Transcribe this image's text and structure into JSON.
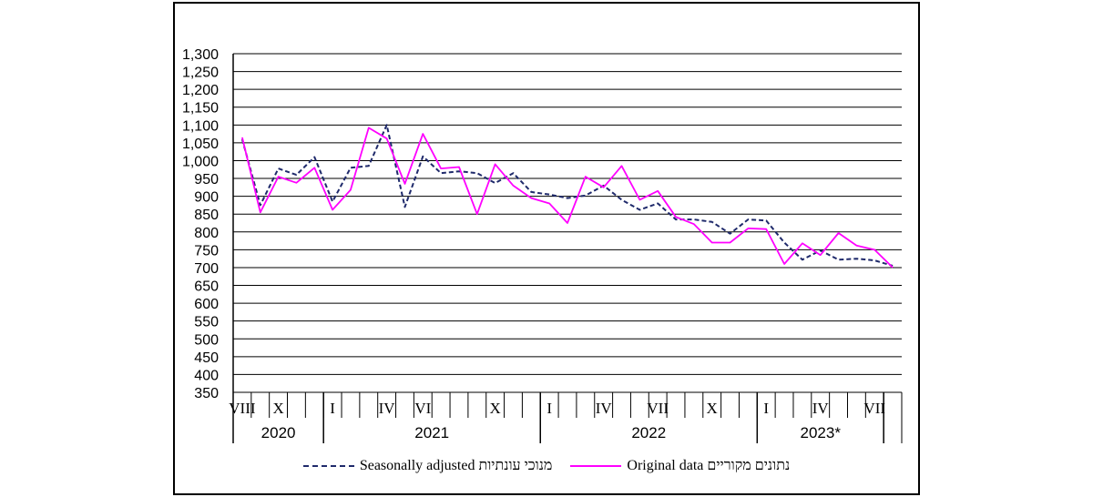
{
  "chart_data": {
    "type": "line",
    "title": "",
    "xlabel": "",
    "ylabel": "",
    "ylim": [
      350,
      1300
    ],
    "ytick_step": 50,
    "grid": true,
    "legend_position": "bottom",
    "x_month_labels": [
      "VIII",
      "X",
      "I",
      "IV",
      "VI",
      "X",
      "I",
      "IV",
      "VII",
      "X",
      "I",
      "IV",
      "VII"
    ],
    "year_labels": [
      "2020",
      "2021",
      "2022",
      "2023*"
    ],
    "months_count": 37,
    "series": [
      {
        "name": "Seasonally adjusted מנוכי עונתיות",
        "style": "dashed",
        "color": "#1f2a6b",
        "values": [
          1060,
          875,
          978,
          960,
          1010,
          885,
          980,
          985,
          1100,
          870,
          1012,
          965,
          970,
          965,
          937,
          965,
          912,
          905,
          895,
          902,
          930,
          890,
          862,
          880,
          835,
          835,
          828,
          795,
          835,
          832,
          770,
          722,
          748,
          722,
          725,
          720,
          705
        ]
      },
      {
        "name": "Original data נתונים מקוריים",
        "style": "solid",
        "color": "#ff00ff",
        "values": [
          1065,
          855,
          955,
          938,
          980,
          862,
          918,
          1092,
          1062,
          935,
          1075,
          978,
          982,
          850,
          990,
          930,
          895,
          880,
          825,
          955,
          925,
          985,
          890,
          915,
          842,
          822,
          770,
          770,
          810,
          808,
          710,
          768,
          735,
          797,
          762,
          750,
          700
        ]
      }
    ]
  }
}
